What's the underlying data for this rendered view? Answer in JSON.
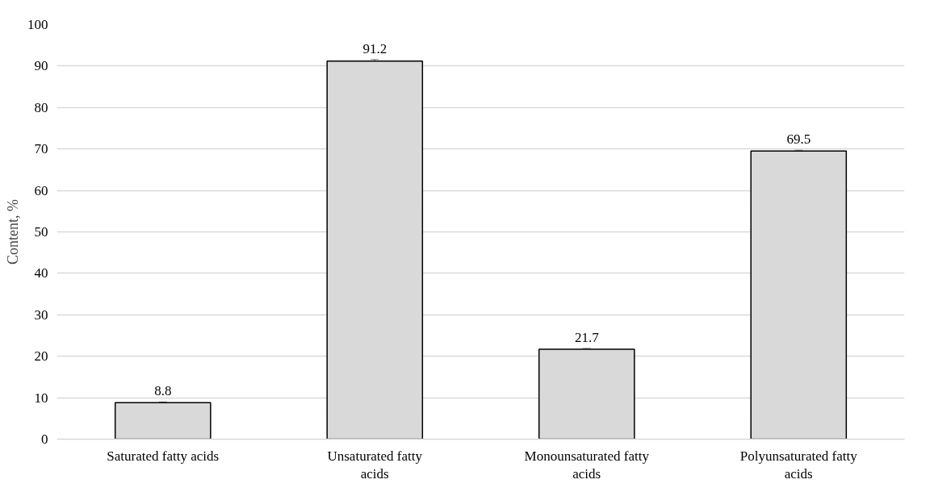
{
  "chart_data": {
    "type": "bar",
    "ylabel": "Content, %",
    "categories": [
      "Saturated fatty acids",
      "Unsaturated fatty acids",
      "Monounsaturated fatty acids",
      "Polyunsaturated fatty acids"
    ],
    "values": [
      8.8,
      91.2,
      21.7,
      69.5
    ],
    "errors": [
      0.2,
      0.4,
      0.2,
      0.2
    ],
    "color": "#d9d9d9",
    "ylim": [
      0,
      100
    ],
    "yticks": [
      0,
      10,
      20,
      30,
      40,
      50,
      60,
      70,
      80,
      90,
      100
    ],
    "grid": "y",
    "data_labels": true
  }
}
